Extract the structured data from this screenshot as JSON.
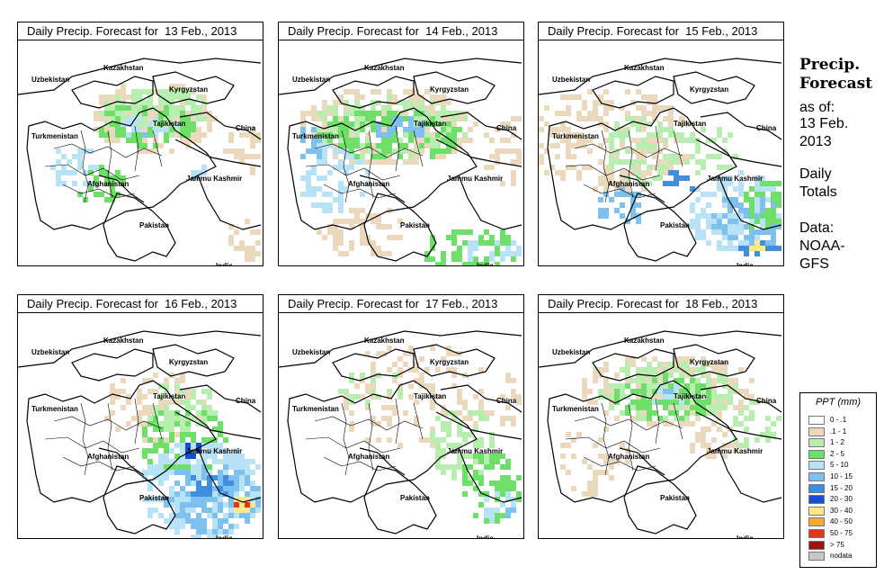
{
  "panels": [
    {
      "title": "Daily Precip. Forecast for  13 Feb., 2013",
      "date": "2013-02-13"
    },
    {
      "title": "Daily Precip. Forecast for  14 Feb., 2013",
      "date": "2013-02-14"
    },
    {
      "title": "Daily Precip. Forecast for  15 Feb., 2013",
      "date": "2013-02-15"
    },
    {
      "title": "Daily Precip. Forecast for  16 Feb., 2013",
      "date": "2013-02-16"
    },
    {
      "title": "Daily Precip. Forecast for  17 Feb., 2013",
      "date": "2013-02-17"
    },
    {
      "title": "Daily Precip. Forecast for  18 Feb., 2013",
      "date": "2013-02-18"
    }
  ],
  "map_labels": {
    "uzbekistan": "Uzbekistan",
    "kazakhstan": "Kazakhstan",
    "kyrgyzstan": "Kyrgyzstan",
    "tajikistan": "Tajikistan",
    "turkmenistan": "Turkmenistan",
    "china": "China",
    "afghanistan": "Afghanistan",
    "jammu_kashmir": "Jammu Kashmir",
    "pakistan": "Pakistan",
    "india": "India"
  },
  "sidebar": {
    "heading_line1": "Precip.",
    "heading_line2": "Forecast",
    "as_of": "as of:",
    "date_line1": "13 Feb.",
    "date_line2": "2013",
    "totals_line1": "Daily",
    "totals_line2": "Totals",
    "data_line1": "Data:",
    "data_line2": "NOAA-",
    "data_line3": "GFS"
  },
  "legend": {
    "title": "PPT (mm)",
    "items": [
      {
        "label": "0 - .1",
        "color": "#ffffff"
      },
      {
        "label": ".1 - 1",
        "color": "#ead9bd"
      },
      {
        "label": "1 - 2",
        "color": "#b9eeb1"
      },
      {
        "label": "2 - 5",
        "color": "#6ee06a"
      },
      {
        "label": "5 - 10",
        "color": "#b8e3f7"
      },
      {
        "label": "10 - 15",
        "color": "#7ec1ee"
      },
      {
        "label": "15 - 20",
        "color": "#3f8ee0"
      },
      {
        "label": "20 - 30",
        "color": "#1450d0"
      },
      {
        "label": "30 - 40",
        "color": "#ffe88a"
      },
      {
        "label": "40 - 50",
        "color": "#f5a83a"
      },
      {
        "label": "50 - 75",
        "color": "#e8341c"
      },
      {
        "label": "> 75",
        "color": "#a01010"
      },
      {
        "label": "nodata",
        "color": "#c8c8c8"
      }
    ]
  }
}
